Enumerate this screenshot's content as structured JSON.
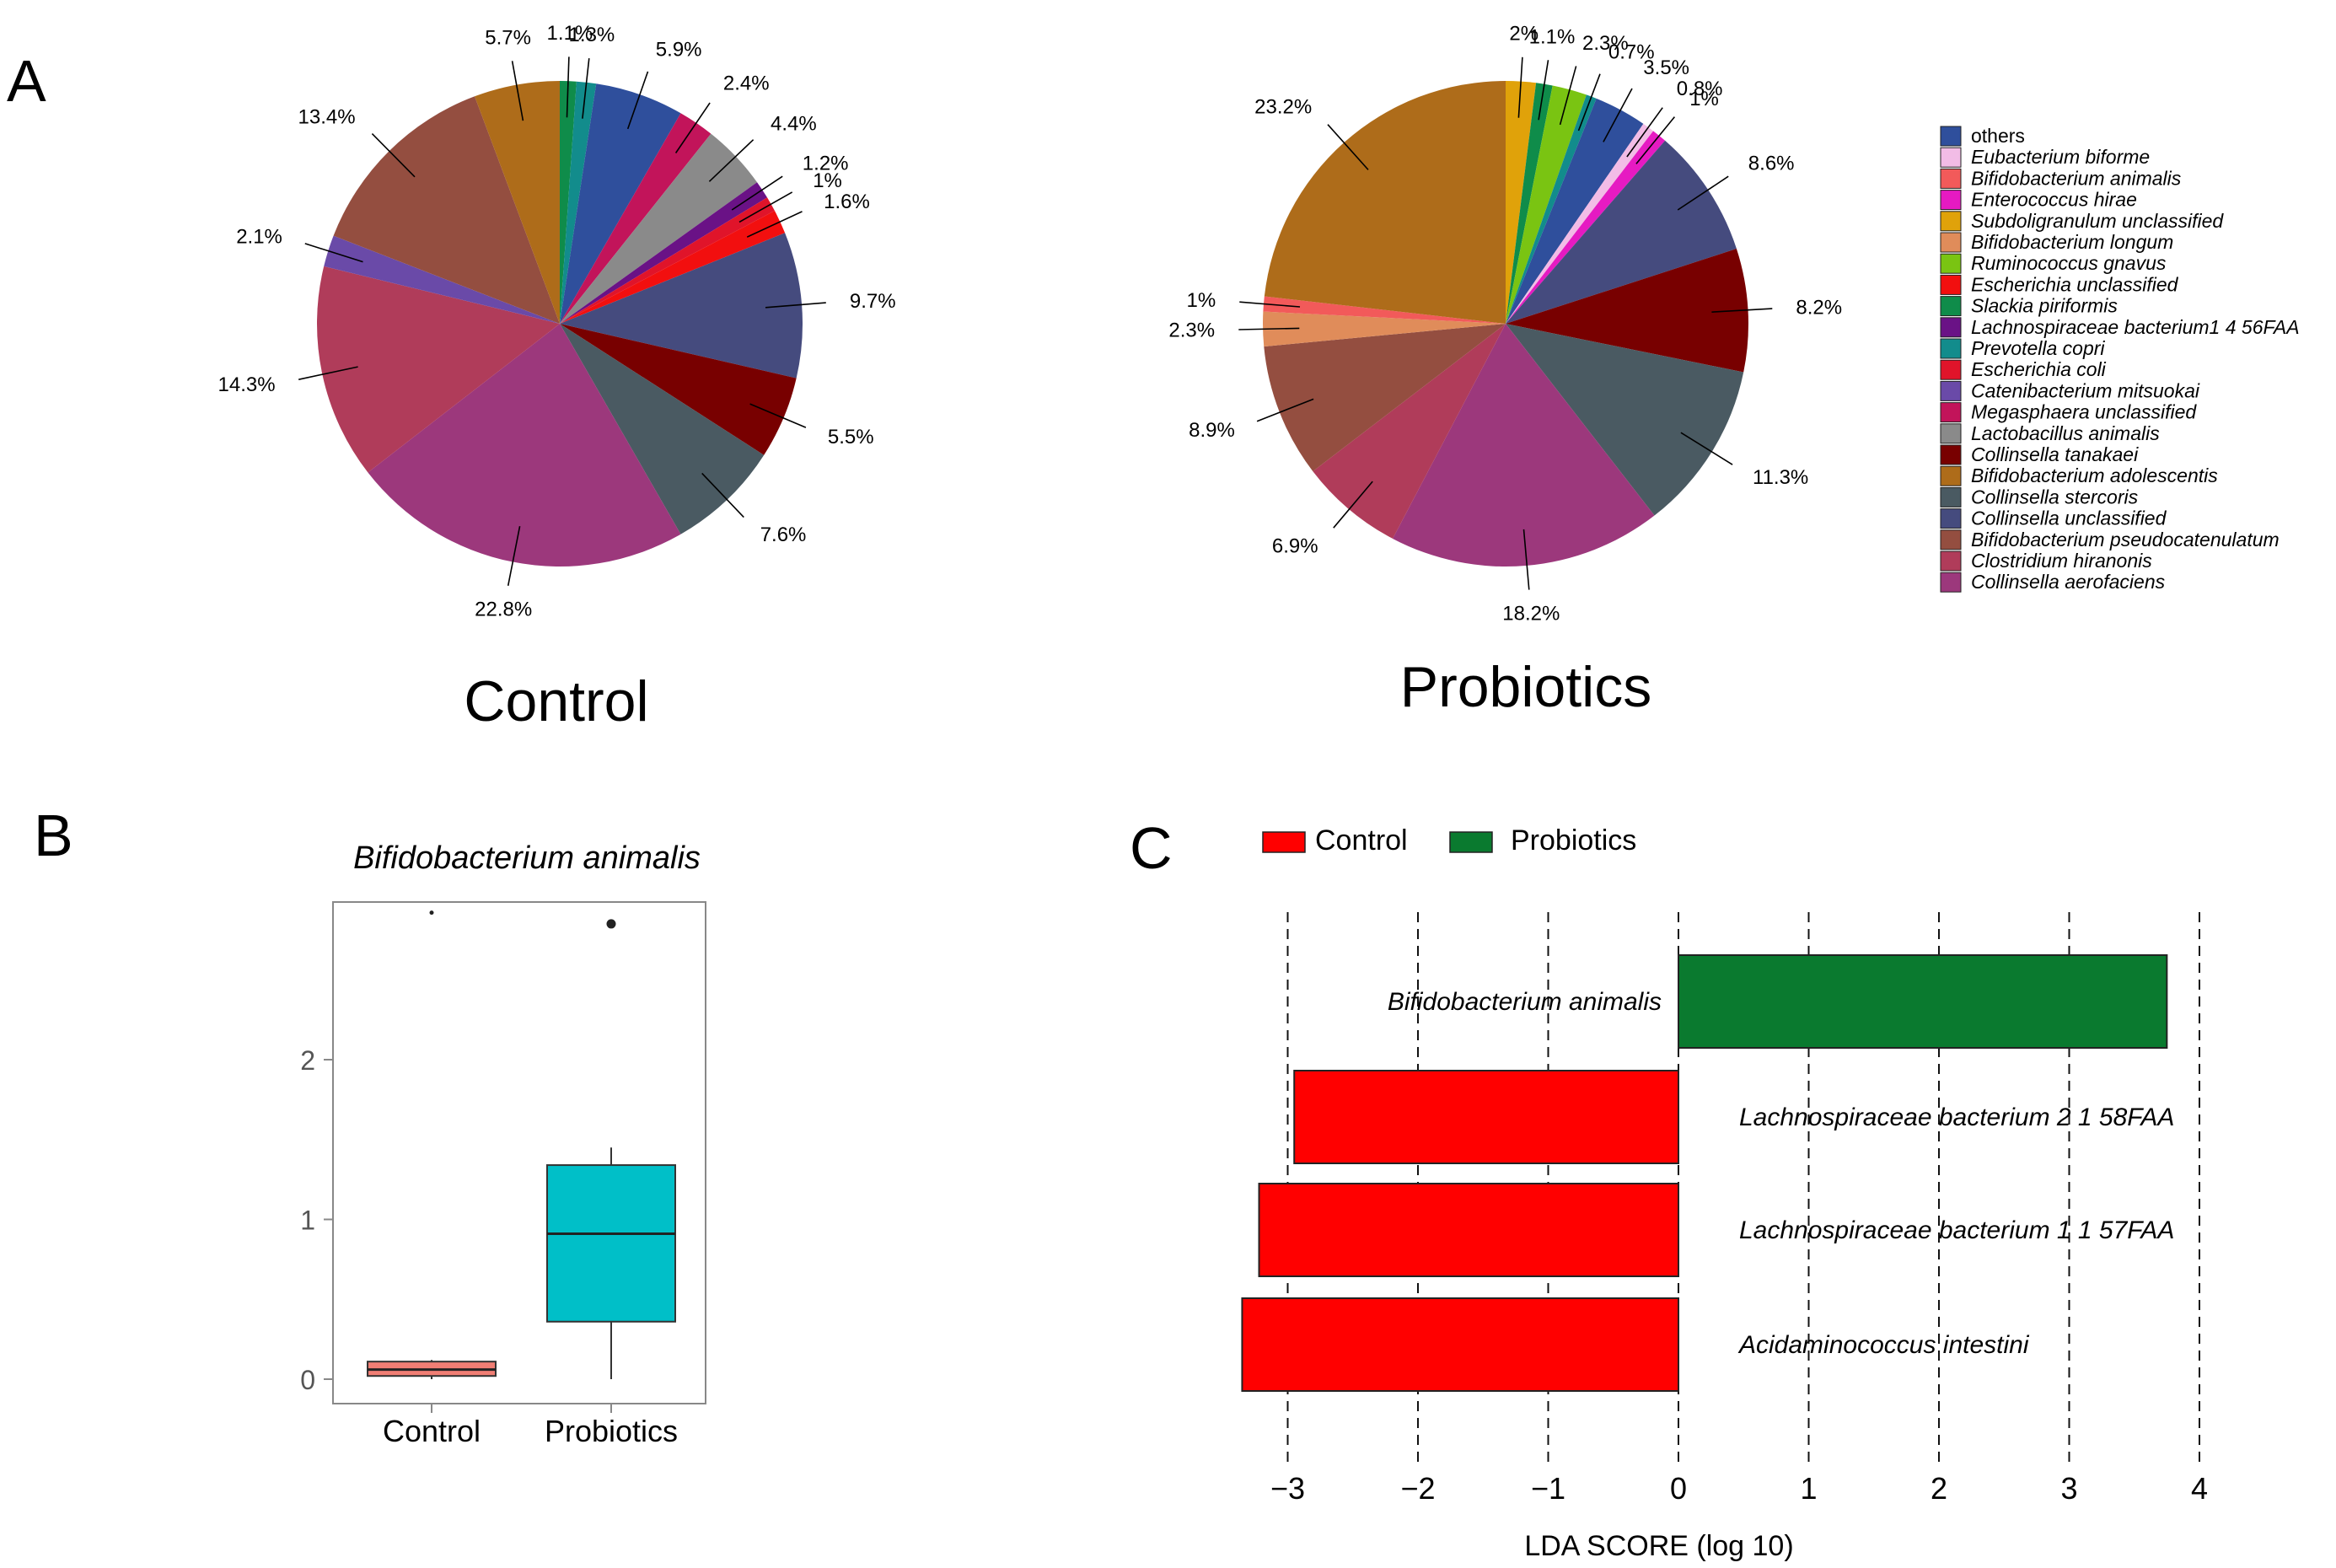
{
  "panels": {
    "A": "A",
    "B": "B",
    "C": "C"
  },
  "species": [
    {
      "key": "others",
      "label": "others",
      "color": "#2F4F9C",
      "italic": false
    },
    {
      "key": "ebif",
      "label": "Eubacterium biforme",
      "color": "#F2BCE6",
      "italic": true
    },
    {
      "key": "bani",
      "label": "Bifidobacterium animalis",
      "color": "#F25A5A",
      "italic": true
    },
    {
      "key": "ehir",
      "label": "Enterococcus hirae",
      "color": "#E61AC2",
      "italic": true
    },
    {
      "key": "subd",
      "label": "Subdoligranulum unclassified",
      "color": "#E0A20A",
      "italic": true
    },
    {
      "key": "blon",
      "label": "Bifidobacterium longum",
      "color": "#E08C5A",
      "italic": true
    },
    {
      "key": "rgna",
      "label": "Ruminococcus gnavus",
      "color": "#7AC412",
      "italic": true
    },
    {
      "key": "escu",
      "label": "Escherichia unclassified",
      "color": "#F20F0F",
      "italic": true
    },
    {
      "key": "spir",
      "label": "Slackia piriformis",
      "color": "#0F8C4A",
      "italic": true
    },
    {
      "key": "lach",
      "label": "Lachnospiraceae bacterium1 4 56FAA",
      "color": "#6A1286",
      "italic": true
    },
    {
      "key": "pcop",
      "label": "Prevotella copri",
      "color": "#128C8C",
      "italic": true
    },
    {
      "key": "ecol",
      "label": "Escherichia coli",
      "color": "#E0142A",
      "italic": true
    },
    {
      "key": "cmit",
      "label": "Catenibacterium mitsuokai",
      "color": "#6A4AA8",
      "italic": true
    },
    {
      "key": "megu",
      "label": "Megasphaera unclassified",
      "color": "#C2145A",
      "italic": true
    },
    {
      "key": "lani",
      "label": "Lactobacillus animalis",
      "color": "#8A8A8A",
      "italic": true
    },
    {
      "key": "ctan",
      "label": "Collinsella tanakaei",
      "color": "#780000",
      "italic": true
    },
    {
      "key": "bado",
      "label": "Bifidobacterium adolescentis",
      "color": "#AE6C1A",
      "italic": true
    },
    {
      "key": "cste",
      "label": "Collinsella stercoris",
      "color": "#4A5A62",
      "italic": true
    },
    {
      "key": "cunc",
      "label": "Collinsella unclassified",
      "color": "#454B7E",
      "italic": true
    },
    {
      "key": "bpse",
      "label": "Bifidobacterium pseudocatenulatum",
      "color": "#944E40",
      "italic": true
    },
    {
      "key": "chir",
      "label": "Clostridium hiranonis",
      "color": "#B03C5A",
      "italic": true
    },
    {
      "key": "caer",
      "label": "Collinsella aerofaciens",
      "color": "#9C387C",
      "italic": true
    }
  ],
  "chart_data": [
    {
      "type": "pie",
      "panel": "A",
      "title": "Control",
      "slices": [
        {
          "key": "spir",
          "value": 1.1,
          "label": "1.1%"
        },
        {
          "key": "pcop",
          "value": 1.3,
          "label": "1.3%"
        },
        {
          "key": "others",
          "value": 5.9,
          "label": "5.9%"
        },
        {
          "key": "megu",
          "value": 2.4,
          "label": "2.4%"
        },
        {
          "key": "lani",
          "value": 4.4,
          "label": "4.4%"
        },
        {
          "key": "lach",
          "value": 1.2,
          "label": "1.2%"
        },
        {
          "key": "ecol",
          "value": 1.0,
          "label": "1%"
        },
        {
          "key": "escu",
          "value": 1.6,
          "label": "1.6%"
        },
        {
          "key": "cunc",
          "value": 9.7,
          "label": "9.7%"
        },
        {
          "key": "ctan",
          "value": 5.5,
          "label": "5.5%"
        },
        {
          "key": "cste",
          "value": 7.6,
          "label": "7.6%"
        },
        {
          "key": "caer",
          "value": 22.8,
          "label": "22.8%"
        },
        {
          "key": "chir",
          "value": 14.3,
          "label": "14.3%"
        },
        {
          "key": "cmit",
          "value": 2.1,
          "label": "2.1%"
        },
        {
          "key": "bpse",
          "value": 13.4,
          "label": "13.4%"
        },
        {
          "key": "bado",
          "value": 5.7,
          "label": "5.7%"
        }
      ]
    },
    {
      "type": "pie",
      "panel": "A",
      "title": "Probiotics",
      "slices": [
        {
          "key": "subd",
          "value": 2.0,
          "label": "2%"
        },
        {
          "key": "spir",
          "value": 1.1,
          "label": "1.1%"
        },
        {
          "key": "rgna",
          "value": 2.3,
          "label": "2.3%"
        },
        {
          "key": "pcop",
          "value": 0.7,
          "label": "0.7%"
        },
        {
          "key": "others",
          "value": 3.5,
          "label": "3.5%"
        },
        {
          "key": "ebif",
          "value": 0.8,
          "label": "0.8%"
        },
        {
          "key": "ehir",
          "value": 1.0,
          "label": "1%"
        },
        {
          "key": "cunc",
          "value": 8.6,
          "label": "8.6%"
        },
        {
          "key": "ctan",
          "value": 8.2,
          "label": "8.2%"
        },
        {
          "key": "cste",
          "value": 11.3,
          "label": "11.3%"
        },
        {
          "key": "caer",
          "value": 18.2,
          "label": "18.2%"
        },
        {
          "key": "chir",
          "value": 6.9,
          "label": "6.9%"
        },
        {
          "key": "bpse",
          "value": 8.9,
          "label": "8.9%"
        },
        {
          "key": "blon",
          "value": 2.3,
          "label": "2.3%"
        },
        {
          "key": "bani",
          "value": 1.0,
          "label": "1%"
        },
        {
          "key": "bado",
          "value": 23.2,
          "label": "23.2%"
        }
      ]
    },
    {
      "type": "box",
      "panel": "B",
      "title": "Bifidobacterium animalis",
      "categories": [
        "Control",
        "Probiotics"
      ],
      "y_ticks": [
        0,
        1,
        2
      ],
      "ylim": [
        -0.08,
        3.0
      ],
      "boxes": [
        {
          "name": "Control",
          "color": "#F07E74",
          "min": 0.0,
          "q1": 0.02,
          "median": 0.06,
          "q3": 0.11,
          "max": 0.12,
          "outliers": [
            2.92
          ]
        },
        {
          "name": "Probiotics",
          "color": "#00BFC8",
          "min": 0.0,
          "q1": 0.36,
          "median": 0.91,
          "q3": 1.34,
          "max": 1.45,
          "outliers": [
            2.85
          ]
        }
      ]
    },
    {
      "type": "bar",
      "panel": "C",
      "orientation": "horizontal",
      "xlabel": "LDA SCORE (log 10)",
      "x_ticks": [
        -3,
        -2,
        -1,
        0,
        1,
        2,
        3,
        4
      ],
      "x_tick_labels": [
        "−3",
        "−2",
        "−1",
        "0",
        "1",
        "2",
        "3",
        "4"
      ],
      "xlim": [
        -3.4,
        4.15
      ],
      "legend": [
        {
          "name": "Control",
          "color": "#FF0000"
        },
        {
          "name": "Probiotics",
          "color": "#0A7A2F"
        }
      ],
      "bars": [
        {
          "label": "Bifidobacterium animalis",
          "value": 3.75,
          "group": "Probiotics"
        },
        {
          "label": "Lachnospiraceae bacterium 2 1 58FAA",
          "value": -2.95,
          "group": "Control"
        },
        {
          "label": "Lachnospiraceae bacterium 1 1 57FAA",
          "value": -3.22,
          "group": "Control"
        },
        {
          "label": "Acidaminococcus intestini",
          "value": -3.35,
          "group": "Control"
        }
      ]
    }
  ]
}
